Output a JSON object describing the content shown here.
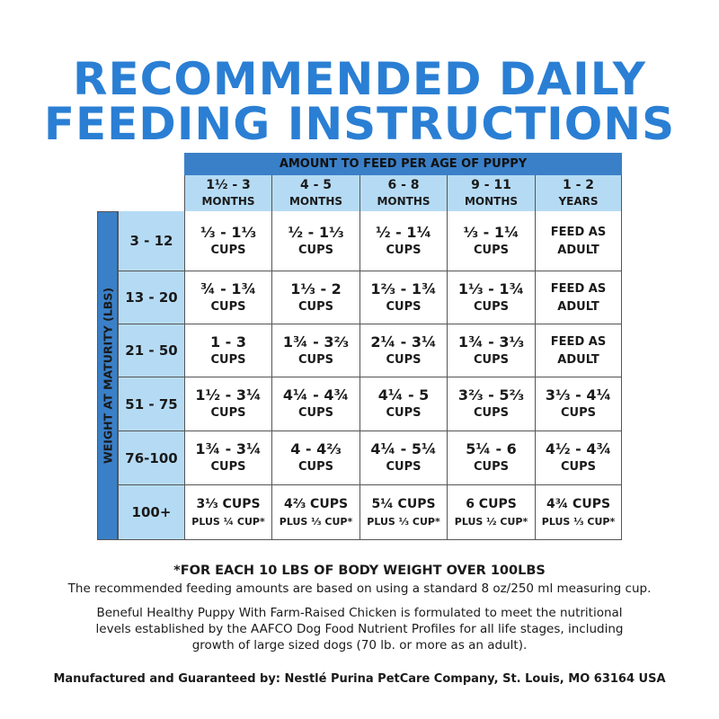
{
  "title": {
    "line1": "RECOMMENDED DAILY",
    "line2": "FEEDING INSTRUCTIONS"
  },
  "table": {
    "header": "AMOUNT TO FEED PER AGE OF PUPPY",
    "row_axis_label": "WEIGHT AT MATURITY (LBS)",
    "columns": [
      {
        "range": "1½ - 3",
        "unit": "MONTHS"
      },
      {
        "range": "4 - 5",
        "unit": "MONTHS"
      },
      {
        "range": "6 - 8",
        "unit": "MONTHS"
      },
      {
        "range": "9 - 11",
        "unit": "MONTHS"
      },
      {
        "range": "1 - 2",
        "unit": "YEARS"
      }
    ],
    "rows": [
      {
        "weight": "3 - 12",
        "cells": [
          [
            "⅓ - 1⅓",
            "CUPS"
          ],
          [
            "½ - 1⅓",
            "CUPS"
          ],
          [
            "½ - 1¼",
            "CUPS"
          ],
          [
            "⅓ - 1¼",
            "CUPS"
          ],
          [
            "FEED AS",
            "ADULT"
          ]
        ]
      },
      {
        "weight": "13 - 20",
        "cells": [
          [
            "¾ - 1¾",
            "CUPS"
          ],
          [
            "1⅓ - 2",
            "CUPS"
          ],
          [
            "1⅔ - 1¾",
            "CUPS"
          ],
          [
            "1⅓ - 1¾",
            "CUPS"
          ],
          [
            "FEED AS",
            "ADULT"
          ]
        ]
      },
      {
        "weight": "21 - 50",
        "cells": [
          [
            "1 - 3",
            "CUPS"
          ],
          [
            "1¾ - 3⅔",
            "CUPS"
          ],
          [
            "2¼ - 3¼",
            "CUPS"
          ],
          [
            "1¾ - 3⅓",
            "CUPS"
          ],
          [
            "FEED AS",
            "ADULT"
          ]
        ]
      },
      {
        "weight": "51 - 75",
        "cells": [
          [
            "1½ - 3¼",
            "CUPS"
          ],
          [
            "4¼ - 4¾",
            "CUPS"
          ],
          [
            "4¼ - 5",
            "CUPS"
          ],
          [
            "3⅔ - 5⅔",
            "CUPS"
          ],
          [
            "3⅓ - 4¼",
            "CUPS"
          ]
        ]
      },
      {
        "weight": "76-100",
        "cells": [
          [
            "1¾ - 3¼",
            "CUPS"
          ],
          [
            "4 - 4⅔",
            "CUPS"
          ],
          [
            "4¼ - 5¼",
            "CUPS"
          ],
          [
            "5¼ - 6",
            "CUPS"
          ],
          [
            "4½ - 4¾",
            "CUPS"
          ]
        ]
      },
      {
        "weight": "100+",
        "cells": [
          [
            "3⅓ CUPS",
            "PLUS ¼ CUP*"
          ],
          [
            "4⅔ CUPS",
            "PLUS ⅓ CUP*"
          ],
          [
            "5¼ CUPS",
            "PLUS ⅓ CUP*"
          ],
          [
            "6 CUPS",
            "PLUS ½ CUP*"
          ],
          [
            "4¾ CUPS",
            "PLUS ⅓ CUP*"
          ]
        ]
      }
    ]
  },
  "footnote": "*FOR EACH 10 LBS OF BODY WEIGHT OVER 100LBS",
  "measuring_note": "The recommended feeding amounts are based on using a standard 8 oz/250 ml measuring cup.",
  "formulation_note": "Beneful Healthy Puppy With Farm-Raised Chicken is formulated to meet the nutritional levels established by the AAFCO Dog Food Nutrient Profiles for all life stages, including growth of large sized dogs (70 lb. or more as an adult).",
  "manufacturer": "Manufactured and Guaranteed by: Nestlé Purina PetCare Company, St. Louis, MO 63164 USA",
  "colors": {
    "title": "#2a7fd4",
    "header": "#3a80c8",
    "light": "#b5dbf4"
  }
}
